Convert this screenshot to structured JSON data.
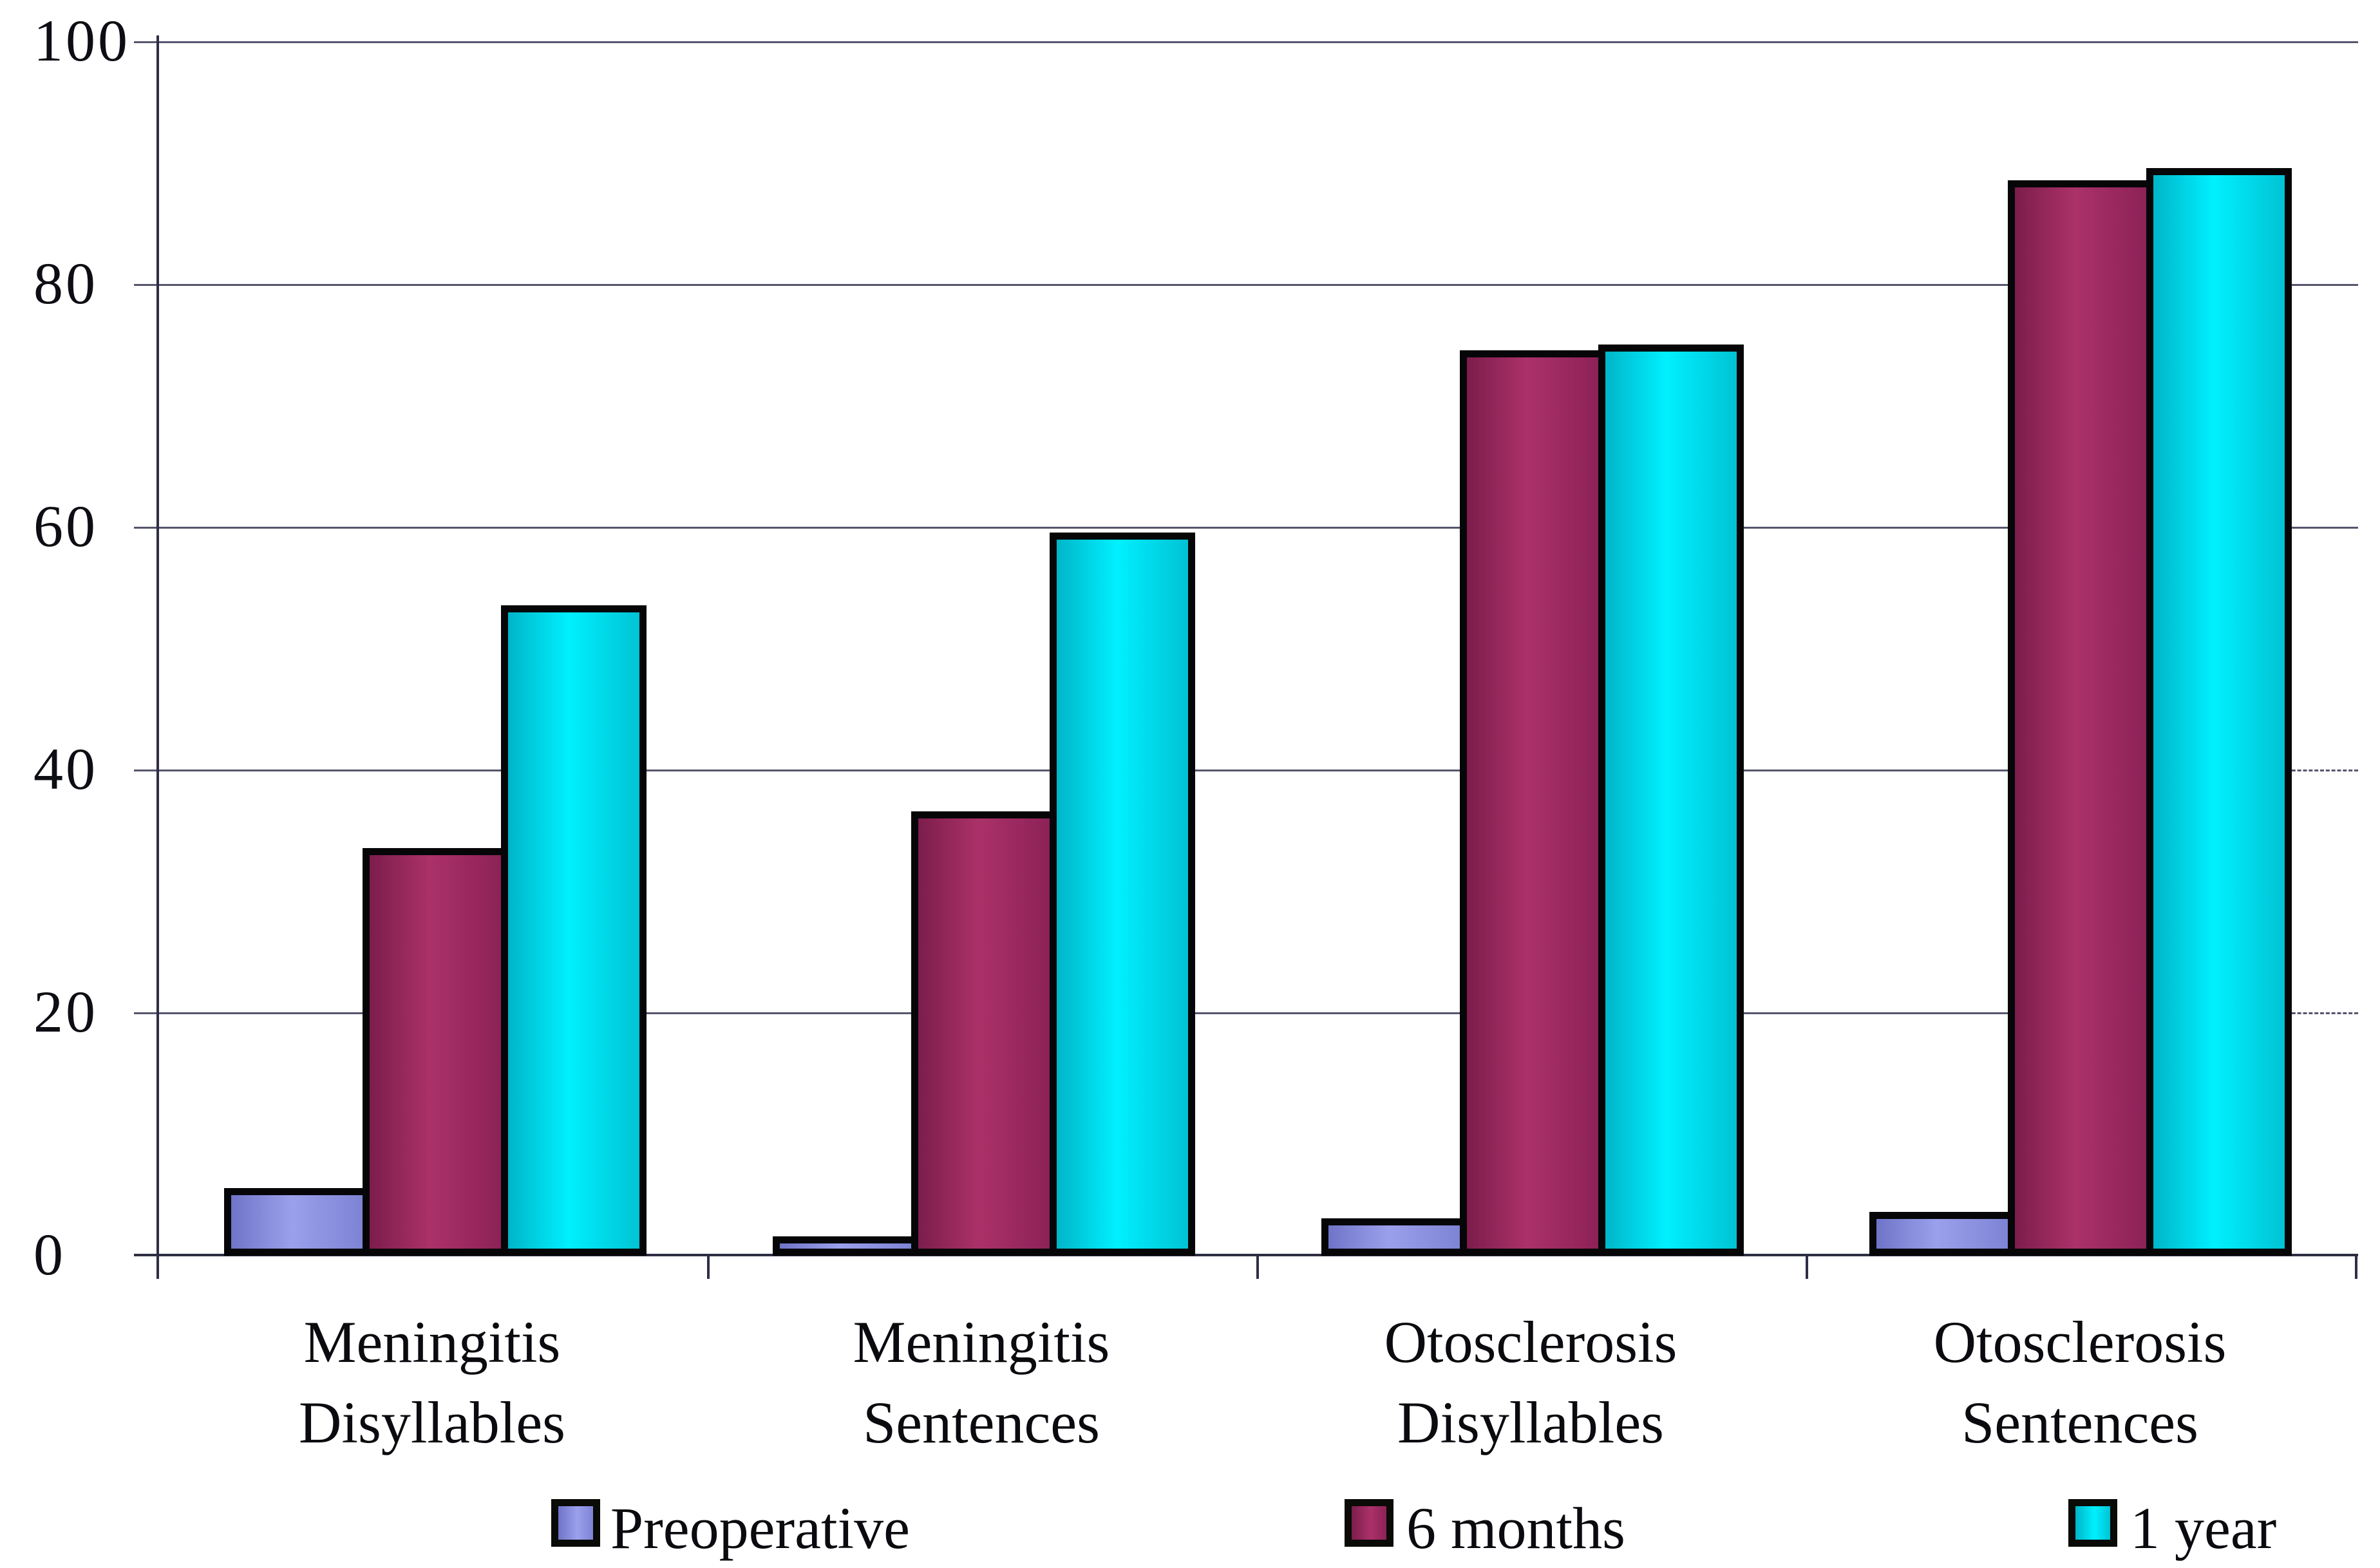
{
  "chart_data": {
    "type": "bar",
    "title": "",
    "xlabel": "",
    "ylabel": "",
    "ylim": [
      0,
      100
    ],
    "y_ticks": [
      0,
      20,
      40,
      60,
      80,
      100
    ],
    "y_tick_labels": [
      "0",
      "20",
      "40",
      "60",
      "80",
      "100"
    ],
    "grid": "horizontal",
    "legend_position": "bottom",
    "categories": [
      [
        "Meningitis",
        "Disyllables"
      ],
      [
        "Meningitis",
        "Sentences"
      ],
      [
        "Otosclerosis",
        "Disyllables"
      ],
      [
        "Otosclerosis",
        "Sentences"
      ]
    ],
    "series": [
      {
        "name": "Preoperative",
        "color": "#8b90e0",
        "gradient": [
          "#6f74c8",
          "#9ba0ec",
          "#7e83d4"
        ],
        "values": [
          5,
          1,
          2.5,
          3
        ]
      },
      {
        "name": "6 months",
        "color": "#9c2960",
        "gradient": [
          "#7c1d4c",
          "#ab3169",
          "#8c2257"
        ],
        "values": [
          33,
          36,
          74,
          88
        ]
      },
      {
        "name": "1 year",
        "color": "#00d5e6",
        "gradient": [
          "#00b5c8",
          "#00f0ff",
          "#00c3d4"
        ],
        "values": [
          53,
          59,
          74.5,
          89
        ]
      }
    ],
    "colors": {
      "axis": "#2e2e44",
      "gridline": "#55556e",
      "bar_outline": "#060608",
      "text": "#0a0a0f",
      "background": "#ffffff"
    }
  }
}
